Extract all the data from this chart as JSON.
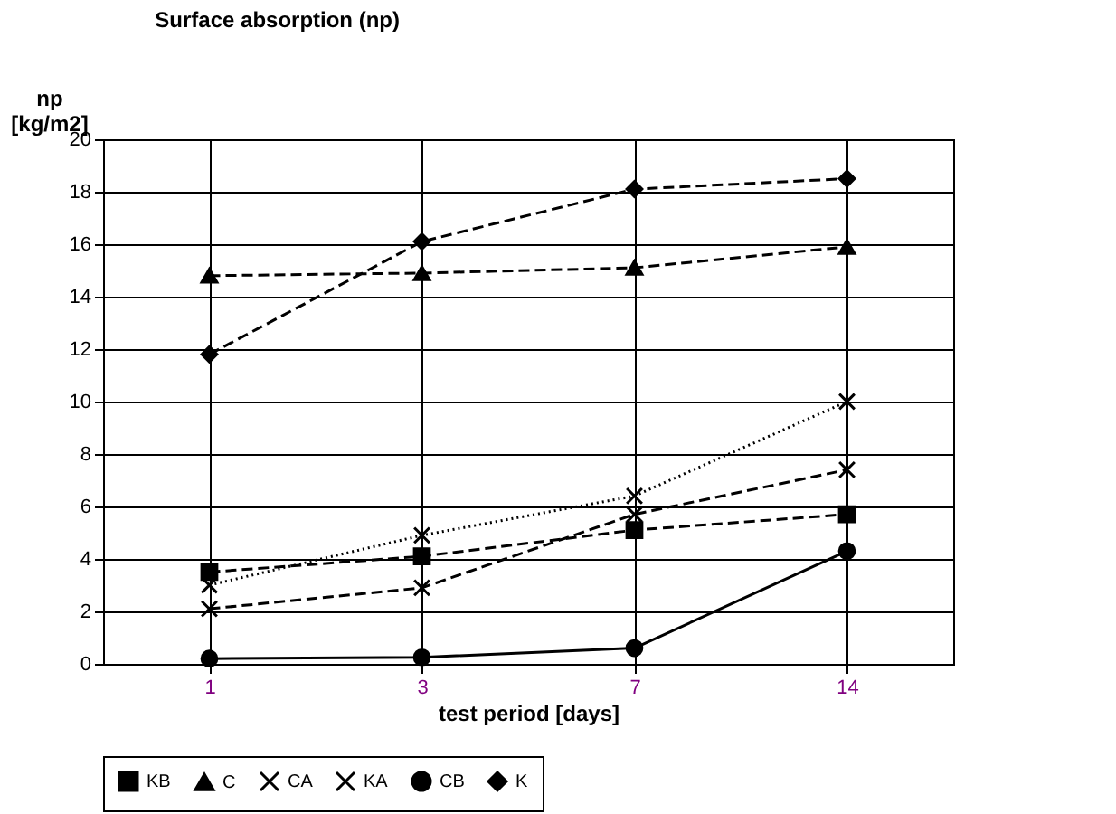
{
  "chart_data": {
    "type": "line",
    "title": "Surface absorption (np)",
    "xlabel": "test period [days]",
    "ylabel": "np\n[kg/m2]",
    "categories": [
      "1",
      "3",
      "7",
      "14"
    ],
    "series": [
      {
        "name": "KB",
        "color": "#000000",
        "marker": "square",
        "line_style": "dashed",
        "values": [
          3.5,
          4.1,
          5.1,
          5.7
        ]
      },
      {
        "name": "C",
        "color": "#000000",
        "marker": "triangle",
        "line_style": "dashed",
        "values": [
          14.8,
          14.9,
          15.1,
          15.9
        ]
      },
      {
        "name": "CA",
        "color": "#000000",
        "marker": "cross",
        "line_style": "dashed",
        "values": [
          2.1,
          2.9,
          5.7,
          7.4
        ]
      },
      {
        "name": "KA",
        "color": "#000000",
        "marker": "cross",
        "line_style": "dotted",
        "values": [
          3.0,
          4.9,
          6.4,
          10.0
        ]
      },
      {
        "name": "CB",
        "color": "#000000",
        "marker": "circle",
        "line_style": "solid",
        "values": [
          0.2,
          0.25,
          0.6,
          4.3
        ]
      },
      {
        "name": "K",
        "color": "#000000",
        "marker": "diamond",
        "line_style": "dashed",
        "values": [
          11.8,
          16.1,
          18.1,
          18.5
        ]
      }
    ],
    "ylim": [
      0,
      20
    ],
    "yticks": [
      0,
      2,
      4,
      6,
      8,
      10,
      12,
      14,
      16,
      18,
      20
    ],
    "grid": true,
    "legend": "bottom"
  }
}
